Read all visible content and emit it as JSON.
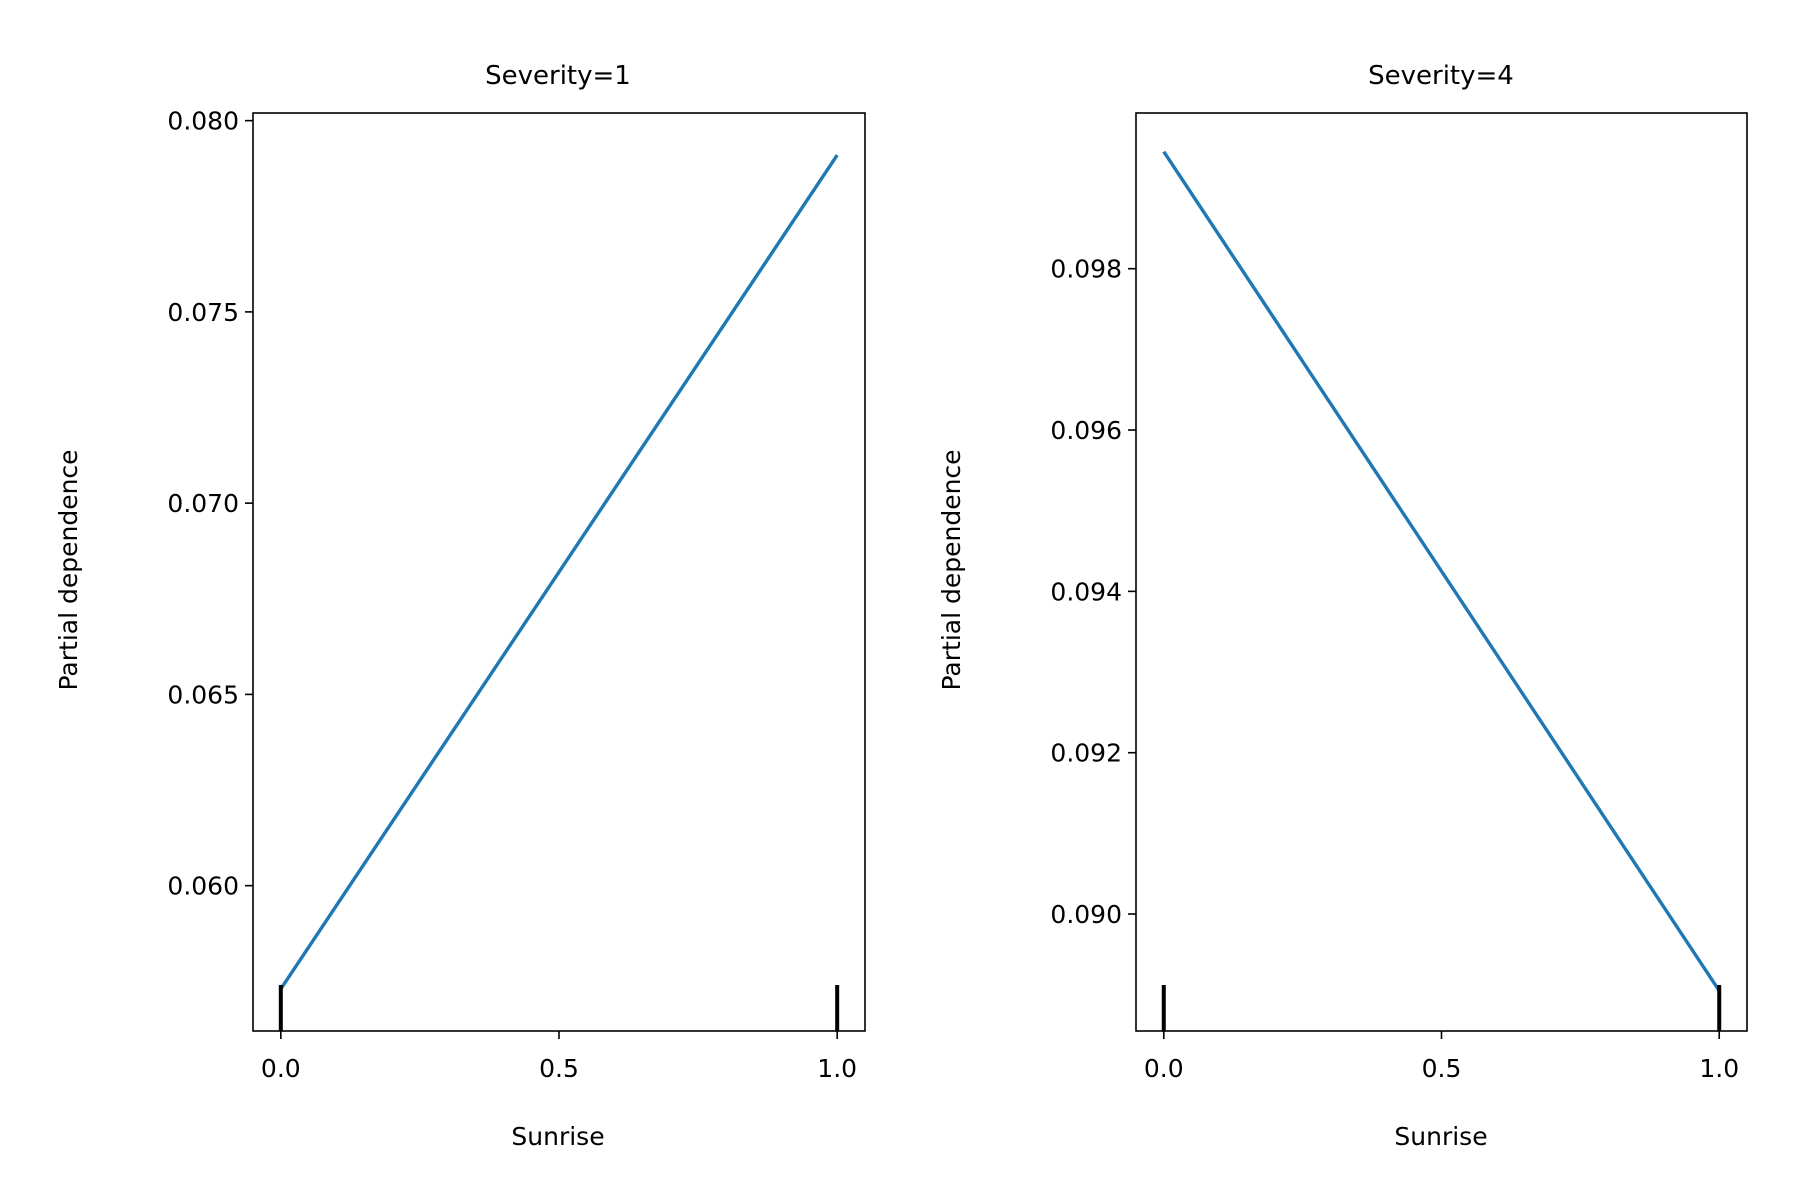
{
  "chart_data": [
    {
      "type": "line",
      "title": "Severity=1",
      "xlabel": "Sunrise",
      "ylabel": "Partial dependence",
      "xlim": [
        -0.05,
        1.05
      ],
      "ylim": [
        0.0562,
        0.0802
      ],
      "xticks": [
        0.0,
        0.5,
        1.0
      ],
      "xtick_labels": [
        "0.0",
        "0.5",
        "1.0"
      ],
      "yticks": [
        0.06,
        0.065,
        0.07,
        0.075,
        0.08
      ],
      "ytick_labels": [
        "0.060",
        "0.065",
        "0.070",
        "0.075",
        "0.080"
      ],
      "series": [
        {
          "x": [
            0.0,
            1.0
          ],
          "y": [
            0.0573,
            0.0791
          ],
          "color": "#1f77b4"
        }
      ],
      "rug": [
        0.0,
        1.0
      ],
      "grid": false
    },
    {
      "type": "line",
      "title": "Severity=4",
      "xlabel": "Sunrise",
      "ylabel": "Partial dependence",
      "xlim": [
        -0.05,
        1.05
      ],
      "ylim": [
        0.08855,
        0.09993
      ],
      "xticks": [
        0.0,
        0.5,
        1.0
      ],
      "xtick_labels": [
        "0.0",
        "0.5",
        "1.0"
      ],
      "yticks": [
        0.09,
        0.092,
        0.094,
        0.096,
        0.098
      ],
      "ytick_labels": [
        "0.090",
        "0.092",
        "0.094",
        "0.096",
        "0.098"
      ],
      "series": [
        {
          "x": [
            0.0,
            1.0
          ],
          "y": [
            0.09945,
            0.08905
          ],
          "color": "#1f77b4"
        }
      ],
      "rug": [
        0.0,
        1.0
      ],
      "grid": false
    }
  ]
}
